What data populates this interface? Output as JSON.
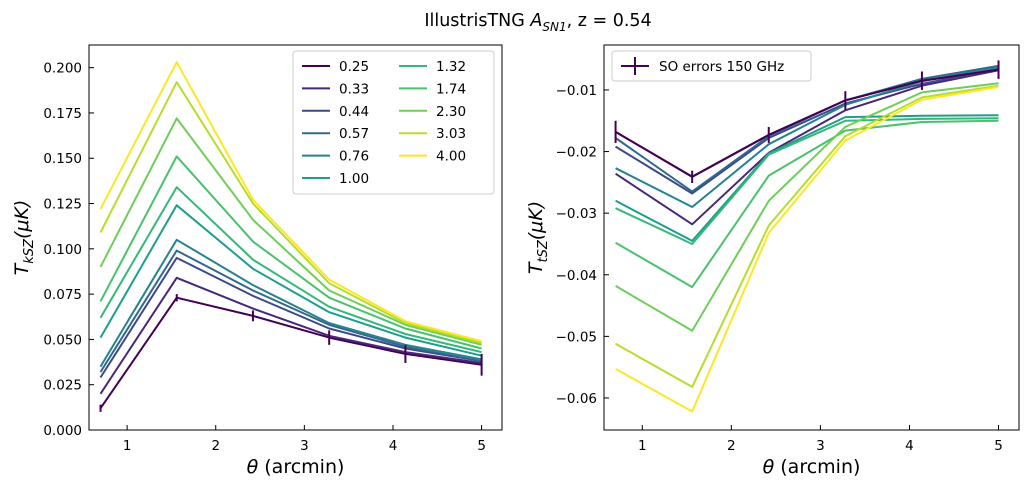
{
  "figure": {
    "title_prefix": "IllustrisTNG ",
    "title_symbol": "A",
    "title_subscript": "SN1",
    "title_suffix": ", z = 0.54"
  },
  "chart_data": [
    {
      "type": "line",
      "id": "ksz",
      "xlabel_symbol": "θ",
      "xlabel_unit": " (arcmin)",
      "ylabel_main": "T",
      "ylabel_sub": "kSZ",
      "ylabel_unit": "(μK)",
      "xlim": [
        0.57,
        5.23
      ],
      "ylim": [
        0.0,
        0.2125
      ],
      "xticks": [
        1,
        2,
        3,
        4,
        5
      ],
      "yticks": [
        0.0,
        0.025,
        0.05,
        0.075,
        0.1,
        0.125,
        0.15,
        0.175,
        0.2
      ],
      "ytick_labels": [
        "0.000",
        "0.025",
        "0.050",
        "0.075",
        "0.100",
        "0.125",
        "0.150",
        "0.175",
        "0.200"
      ],
      "x": [
        0.7,
        1.56,
        2.42,
        3.28,
        4.14,
        5.0
      ],
      "legend": {
        "location": "upper-right",
        "columns": 2
      },
      "series": [
        {
          "name": "0.25",
          "color": "#440154",
          "values": [
            0.012,
            0.073,
            0.063,
            0.051,
            0.042,
            0.036
          ]
        },
        {
          "name": "0.33",
          "color": "#482878",
          "values": [
            0.02,
            0.084,
            0.067,
            0.052,
            0.043,
            0.037
          ]
        },
        {
          "name": "0.44",
          "color": "#3e4989",
          "values": [
            0.029,
            0.095,
            0.074,
            0.056,
            0.045,
            0.038
          ]
        },
        {
          "name": "0.57",
          "color": "#31688e",
          "values": [
            0.032,
            0.099,
            0.077,
            0.058,
            0.046,
            0.038
          ]
        },
        {
          "name": "0.76",
          "color": "#26828e",
          "values": [
            0.035,
            0.105,
            0.08,
            0.059,
            0.047,
            0.039
          ]
        },
        {
          "name": "1.00",
          "color": "#1f9e89",
          "values": [
            0.051,
            0.124,
            0.089,
            0.065,
            0.051,
            0.041
          ]
        },
        {
          "name": "1.32",
          "color": "#35b779",
          "values": [
            0.062,
            0.134,
            0.094,
            0.068,
            0.053,
            0.043
          ]
        },
        {
          "name": "1.74",
          "color": "#4ac16d",
          "values": [
            0.071,
            0.151,
            0.104,
            0.073,
            0.056,
            0.045
          ]
        },
        {
          "name": "2.30",
          "color": "#6ece58",
          "values": [
            0.09,
            0.172,
            0.116,
            0.077,
            0.058,
            0.047
          ]
        },
        {
          "name": "3.03",
          "color": "#b5de2b",
          "values": [
            0.109,
            0.192,
            0.125,
            0.081,
            0.059,
            0.048
          ]
        },
        {
          "name": "4.00",
          "color": "#fde725",
          "values": [
            0.122,
            0.203,
            0.127,
            0.083,
            0.06,
            0.049
          ]
        }
      ],
      "errorbars": {
        "values": [
          0.012,
          0.073,
          0.063,
          0.051,
          0.042,
          0.036
        ],
        "errors": [
          0.002,
          0.002,
          0.003,
          0.004,
          0.005,
          0.006
        ],
        "color": "#440154"
      }
    },
    {
      "type": "line",
      "id": "tsz",
      "xlabel_symbol": "θ",
      "xlabel_unit": " (arcmin)",
      "ylabel_main": "T",
      "ylabel_sub": "tSZ",
      "ylabel_unit": "(μK)",
      "xlim": [
        0.57,
        5.23
      ],
      "ylim": [
        -0.0652,
        -0.0027
      ],
      "xticks": [
        1,
        2,
        3,
        4,
        5
      ],
      "yticks": [
        -0.06,
        -0.05,
        -0.04,
        -0.03,
        -0.02,
        -0.01
      ],
      "ytick_labels": [
        "−0.06",
        "−0.05",
        "−0.04",
        "−0.03",
        "−0.02",
        "−0.01"
      ],
      "x": [
        0.7,
        1.56,
        2.42,
        3.28,
        4.14,
        5.0
      ],
      "legend": {
        "location": "upper-left",
        "label": "SO errors 150 GHz"
      },
      "series": [
        {
          "name": "0.25",
          "color": "#440154",
          "values": [
            -0.0168,
            -0.0241,
            -0.0173,
            -0.0117,
            -0.0085,
            -0.0067
          ]
        },
        {
          "name": "0.33",
          "color": "#482878",
          "values": [
            -0.0236,
            -0.0318,
            -0.0202,
            -0.0133,
            -0.0093,
            -0.0068
          ]
        },
        {
          "name": "0.44",
          "color": "#3e4989",
          "values": [
            -0.0192,
            -0.0268,
            -0.0178,
            -0.0122,
            -0.009,
            -0.0066
          ]
        },
        {
          "name": "0.57",
          "color": "#31688e",
          "values": [
            -0.0178,
            -0.0265,
            -0.0175,
            -0.0117,
            -0.0082,
            -0.0061
          ]
        },
        {
          "name": "0.76",
          "color": "#26828e",
          "values": [
            -0.0227,
            -0.029,
            -0.0188,
            -0.0124,
            -0.0086,
            -0.0063
          ]
        },
        {
          "name": "1.00",
          "color": "#1f9e89",
          "values": [
            -0.028,
            -0.0345,
            -0.0203,
            -0.0144,
            -0.0142,
            -0.0141
          ]
        },
        {
          "name": "1.32",
          "color": "#35b779",
          "values": [
            -0.0292,
            -0.035,
            -0.0205,
            -0.015,
            -0.0147,
            -0.0146
          ]
        },
        {
          "name": "1.74",
          "color": "#4ac16d",
          "values": [
            -0.0348,
            -0.042,
            -0.0239,
            -0.0166,
            -0.0152,
            -0.015
          ]
        },
        {
          "name": "2.30",
          "color": "#6ece58",
          "values": [
            -0.0418,
            -0.0491,
            -0.028,
            -0.016,
            -0.0104,
            -0.0089
          ]
        },
        {
          "name": "3.03",
          "color": "#b5de2b",
          "values": [
            -0.0512,
            -0.0582,
            -0.032,
            -0.0175,
            -0.0112,
            -0.0093
          ]
        },
        {
          "name": "4.00",
          "color": "#fde725",
          "values": [
            -0.0553,
            -0.0622,
            -0.0332,
            -0.0182,
            -0.0116,
            -0.0095
          ]
        }
      ],
      "errorbars": {
        "values": [
          -0.0168,
          -0.0241,
          -0.0173,
          -0.0117,
          -0.0085,
          -0.0067
        ],
        "errors": [
          0.0018,
          0.001,
          0.0013,
          0.0015,
          0.0015,
          0.0015
        ],
        "color": "#440154"
      }
    }
  ]
}
